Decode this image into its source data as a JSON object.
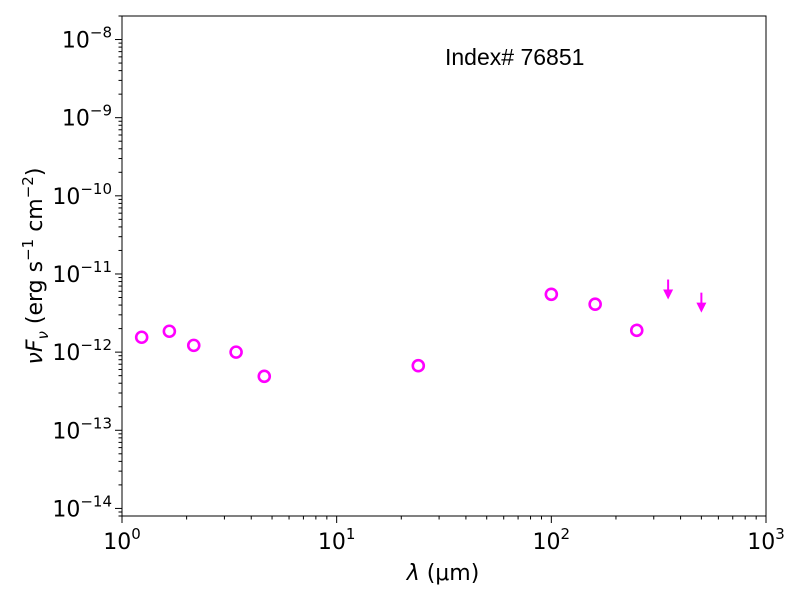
{
  "chart_data": {
    "type": "scatter",
    "xscale": "log",
    "yscale": "log",
    "xlim": [
      1,
      1000
    ],
    "ylim": [
      8e-15,
      2e-08
    ],
    "xlabel": {
      "main": "λ",
      "unit": "(μm)"
    },
    "ylabel": {
      "nu": "ν",
      "F": "F",
      "sub": "ν",
      "open": " (erg s",
      "exp1": "−1",
      "mid": " cm",
      "exp2": "−2",
      "close": ")"
    },
    "annotation": "Index# 76851",
    "marker_color": "#ff00ff",
    "x_ticks": [
      {
        "value": 1,
        "base": "10",
        "exp": "0"
      },
      {
        "value": 10,
        "base": "10",
        "exp": "1"
      },
      {
        "value": 100,
        "base": "10",
        "exp": "2"
      },
      {
        "value": 1000,
        "base": "10",
        "exp": "3"
      }
    ],
    "y_ticks": [
      {
        "value": 1e-14,
        "base": "10",
        "exp": "−14"
      },
      {
        "value": 1e-13,
        "base": "10",
        "exp": "−13"
      },
      {
        "value": 1e-12,
        "base": "10",
        "exp": "−12"
      },
      {
        "value": 1e-11,
        "base": "10",
        "exp": "−11"
      },
      {
        "value": 1e-10,
        "base": "10",
        "exp": "−10"
      },
      {
        "value": 1e-09,
        "base": "10",
        "exp": "−9"
      },
      {
        "value": 1e-08,
        "base": "10",
        "exp": "−8"
      }
    ],
    "points": [
      {
        "x": 1.235,
        "y": 1.55e-12
      },
      {
        "x": 1.662,
        "y": 1.85e-12
      },
      {
        "x": 2.159,
        "y": 1.22e-12
      },
      {
        "x": 3.4,
        "y": 1e-12
      },
      {
        "x": 4.6,
        "y": 4.9e-13
      },
      {
        "x": 24,
        "y": 6.7e-13
      },
      {
        "x": 100,
        "y": 5.5e-12
      },
      {
        "x": 160,
        "y": 4.1e-12
      },
      {
        "x": 250,
        "y": 1.9e-12
      }
    ],
    "upper_limits": [
      {
        "x": 350,
        "y": 5.3e-12
      },
      {
        "x": 500,
        "y": 3.6e-12
      }
    ]
  }
}
